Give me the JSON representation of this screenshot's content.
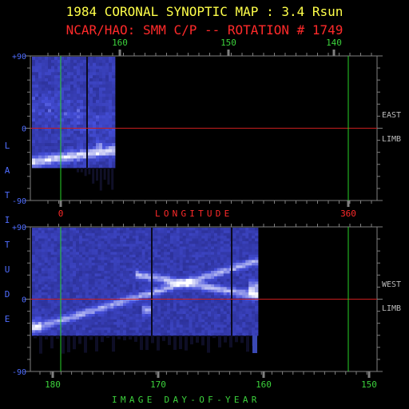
{
  "title": "1984 CORONAL SYNOPTIC MAP : 3.4 Rsun",
  "subtitle": "NCAR/HAO: SMM C/P -- ROTATION # 1749",
  "colors": {
    "title": "#ffff4a",
    "subtitle": "#ff2a2a",
    "latitude_label": "#4f6dff",
    "longitude_label": "#ff2a2a",
    "doy_label": "#3cd23c",
    "equator_line": "#c81e1e",
    "marker_line": "#28d228",
    "frame": "#808080"
  },
  "chart_data": [
    {
      "type": "heatmap",
      "panel": "east-limb",
      "limb_label": [
        "EAST",
        "LIMB"
      ],
      "x_top_label_ticks": [
        "160",
        "150",
        "140"
      ],
      "x_bottom_label_ticks": [
        "0",
        "360"
      ],
      "xlabel": "LONGITUDE",
      "y_ticks": [
        "+90",
        "0",
        "-90"
      ],
      "ylabel": "LATITUDE",
      "ylim": [
        -90,
        90
      ],
      "equator_line": 0
    },
    {
      "type": "heatmap",
      "panel": "west-limb",
      "limb_label": [
        "WEST",
        "LIMB"
      ],
      "x_ticks": [
        "180",
        "170",
        "160",
        "150"
      ],
      "xlabel": "IMAGE DAY-OF-YEAR",
      "y_ticks": [
        "+90",
        "0",
        "-90"
      ],
      "ylim": [
        -90,
        90
      ],
      "equator_line": 0
    }
  ]
}
